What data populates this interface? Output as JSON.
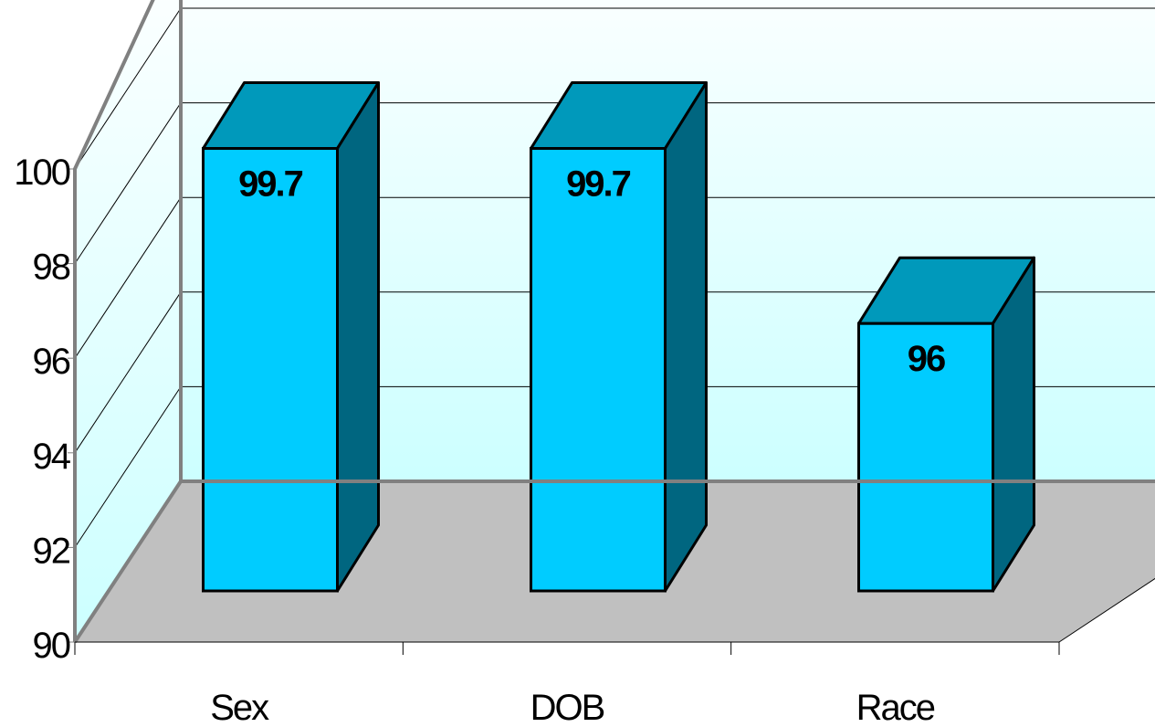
{
  "chart_data": {
    "type": "bar",
    "style": "3d-column",
    "categories": [
      "Sex",
      "DOB",
      "Race"
    ],
    "values": [
      99.7,
      99.7,
      96
    ],
    "data_labels": [
      "99.7",
      "99.7",
      "96"
    ],
    "title": "",
    "xlabel": "",
    "ylabel": "",
    "ylim": [
      90,
      100
    ],
    "yticks": [
      90,
      92,
      94,
      96,
      98,
      100
    ],
    "ytick_labels": [
      "90",
      "92",
      "94",
      "96",
      "98",
      "100"
    ],
    "grid": true,
    "legend": "none",
    "colors": {
      "bar_front": "#00CCFF",
      "bar_top": "#0099BB",
      "bar_side": "#006680",
      "wall_top": "#FFFFFF",
      "wall_bottom": "#CCFFFF",
      "floor": "#C0C0C0",
      "gridline": "#000000",
      "axis": "#808080"
    }
  }
}
